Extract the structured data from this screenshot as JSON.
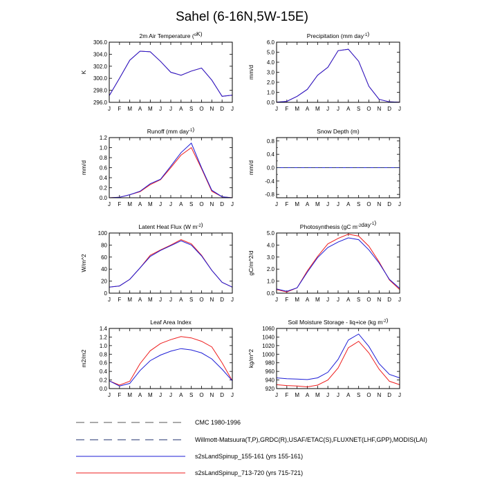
{
  "page_title": "Sahel (6-16N,5W-15E)",
  "months": [
    "J",
    "F",
    "M",
    "A",
    "M",
    "J",
    "J",
    "A",
    "S",
    "O",
    "N",
    "D",
    "J"
  ],
  "colors": {
    "blue": "#1b1bd6",
    "red": "#ee1c1c",
    "grey": "#555555",
    "navy": "#1f2f6e"
  },
  "legend": [
    {
      "label": "CMC 1980-1996",
      "style": "dashed",
      "color": "#555555"
    },
    {
      "label": "Willmott-Matsuura(T,P),GRDC(R),USAF/ETAC(S),FLUXNET(LHF,GPP),MODIS(LAI)",
      "style": "dashed",
      "color": "#1f2f6e"
    },
    {
      "label": "s2sLandSpinup_155-161 (yrs 155-161)",
      "style": "solid",
      "color": "#1b1bd6"
    },
    {
      "label": "s2sLandSpinup_713-720 (yrs 715-721)",
      "style": "solid",
      "color": "#ee1c1c"
    }
  ],
  "chart_data": [
    {
      "type": "line",
      "title_main": "2m Air Temperature (",
      "title_sup": "o",
      "title_end": "K)",
      "ylabel": "K",
      "ylim": [
        296,
        306
      ],
      "yticks": [
        "296.0",
        "298.0",
        "300.0",
        "302.0",
        "304.0",
        "306.0"
      ],
      "series": [
        {
          "values": [
            297.1,
            300.0,
            303.0,
            304.5,
            304.4,
            302.8,
            301.0,
            300.5,
            301.2,
            301.7,
            299.7,
            297.0,
            297.2
          ],
          "color": "#ee1c1c"
        },
        {
          "values": [
            297.1,
            300.0,
            303.0,
            304.5,
            304.4,
            302.8,
            301.0,
            300.5,
            301.2,
            301.7,
            299.7,
            297.0,
            297.2
          ],
          "color": "#1b1bd6"
        }
      ]
    },
    {
      "type": "line",
      "title_main": "Precipitation (mm day",
      "title_sup": "-1",
      "title_end": ")",
      "ylabel": "mm/d",
      "ylim": [
        0,
        6
      ],
      "yticks": [
        "0.0",
        "1.0",
        "2.0",
        "3.0",
        "4.0",
        "5.0",
        "6.0"
      ],
      "series": [
        {
          "values": [
            0.02,
            0.1,
            0.6,
            1.3,
            2.7,
            3.5,
            5.15,
            5.3,
            4.1,
            1.6,
            0.3,
            0.05,
            0.02
          ],
          "color": "#ee1c1c"
        },
        {
          "values": [
            0.02,
            0.1,
            0.6,
            1.3,
            2.7,
            3.5,
            5.15,
            5.3,
            4.1,
            1.6,
            0.3,
            0.05,
            0.02
          ],
          "color": "#1b1bd6"
        }
      ]
    },
    {
      "type": "line",
      "title_main": "Runoff (mm day",
      "title_sup": "-1",
      "title_end": ")",
      "ylabel": "mm/d",
      "ylim": [
        0,
        1.2
      ],
      "yticks": [
        "0.0",
        "0.2",
        "0.4",
        "0.6",
        "0.8",
        "1.0",
        "1.2"
      ],
      "series": [
        {
          "values": [
            0.0,
            0.01,
            0.06,
            0.12,
            0.26,
            0.36,
            0.6,
            0.85,
            1.0,
            0.58,
            0.13,
            0.02,
            0.0
          ],
          "color": "#ee1c1c"
        },
        {
          "values": [
            0.0,
            0.01,
            0.06,
            0.13,
            0.28,
            0.37,
            0.63,
            0.9,
            1.09,
            0.6,
            0.15,
            0.02,
            0.0
          ],
          "color": "#1b1bd6"
        }
      ]
    },
    {
      "type": "line",
      "title_main": "Snow Depth (m)",
      "title_sup": "",
      "title_end": "",
      "ylabel": "mm/d",
      "ylim": [
        -0.9,
        0.9
      ],
      "yticks": [
        "-0.8",
        "-0.4",
        "0.0",
        "0.4",
        "0.8"
      ],
      "ytick_values": [
        -0.8,
        -0.4,
        0,
        0.4,
        0.8
      ],
      "minor_ticks": [
        -0.6,
        -0.2,
        0.2,
        0.6
      ],
      "series": [
        {
          "values": [
            0,
            0,
            0,
            0,
            0,
            0,
            0,
            0,
            0,
            0,
            0,
            0,
            0
          ],
          "color": "#ee1c1c"
        },
        {
          "values": [
            0,
            0,
            0,
            0,
            0,
            0,
            0,
            0,
            0,
            0,
            0,
            0,
            0
          ],
          "color": "#1b1bd6"
        },
        {
          "values": [
            0,
            0,
            0,
            0,
            0,
            0,
            0,
            0,
            0,
            0,
            0,
            0,
            0
          ],
          "color": "#1f2f6e",
          "dashed": true
        }
      ]
    },
    {
      "type": "line",
      "title_main": "Latent Heat Flux (W m",
      "title_sup": "-2",
      "title_end": ")",
      "ylabel": "W/m^2",
      "ylim": [
        0,
        100
      ],
      "yticks": [
        "0",
        "20",
        "40",
        "60",
        "80",
        "100"
      ],
      "series": [
        {
          "values": [
            10,
            12,
            23,
            42,
            63,
            72,
            80,
            89,
            82,
            63,
            38,
            18,
            10
          ],
          "color": "#ee1c1c"
        },
        {
          "values": [
            10,
            12,
            23,
            42,
            61,
            71,
            79,
            87,
            80,
            62,
            38,
            18,
            10
          ],
          "color": "#1b1bd6"
        }
      ]
    },
    {
      "type": "line",
      "title_main": "Photosynthesis (gC m",
      "title_sup": "-2",
      "title_end": "day",
      "title_sup2": "-1",
      "title_end2": ")",
      "ylabel": "gC/m^2/d",
      "ylim": [
        0,
        5
      ],
      "yticks": [
        "0.0",
        "1.0",
        "2.0",
        "3.0",
        "4.0",
        "5.0"
      ],
      "series": [
        {
          "values": [
            0.3,
            0.1,
            0.45,
            1.85,
            3.05,
            4.1,
            4.55,
            4.9,
            4.75,
            3.9,
            2.6,
            1.1,
            0.3
          ],
          "color": "#ee1c1c"
        },
        {
          "values": [
            0.35,
            0.15,
            0.45,
            1.75,
            2.95,
            3.8,
            4.25,
            4.6,
            4.45,
            3.6,
            2.5,
            1.15,
            0.4
          ],
          "color": "#1b1bd6"
        }
      ]
    },
    {
      "type": "line",
      "title_main": "Leaf Area Index",
      "title_sup": "",
      "title_end": "",
      "ylabel": "m2/m2",
      "ylim": [
        0,
        1.4
      ],
      "yticks": [
        "0.0",
        "0.2",
        "0.4",
        "0.6",
        "0.8",
        "1.0",
        "1.2",
        "1.4"
      ],
      "series": [
        {
          "values": [
            0.18,
            0.08,
            0.17,
            0.58,
            0.88,
            1.05,
            1.14,
            1.21,
            1.18,
            1.1,
            0.97,
            0.6,
            0.18
          ],
          "color": "#ee1c1c"
        },
        {
          "values": [
            0.18,
            0.06,
            0.12,
            0.42,
            0.65,
            0.78,
            0.87,
            0.93,
            0.9,
            0.83,
            0.69,
            0.45,
            0.18
          ],
          "color": "#1b1bd6"
        }
      ]
    },
    {
      "type": "line",
      "title_main": "Soil Moisture Storage - liq+ice (kg m",
      "title_sup": "-2",
      "title_end": ")",
      "ylabel": "kg/m^2",
      "ylim": [
        920,
        1060
      ],
      "yticks": [
        "920",
        "940",
        "960",
        "980",
        "1000",
        "1020",
        "1040",
        "1060"
      ],
      "series": [
        {
          "values": [
            929,
            927,
            926,
            924,
            928,
            940,
            968,
            1015,
            1030,
            1003,
            965,
            937,
            929
          ],
          "color": "#ee1c1c"
        },
        {
          "values": [
            945,
            943,
            942,
            941,
            945,
            958,
            988,
            1033,
            1047,
            1018,
            978,
            953,
            945
          ],
          "color": "#1b1bd6"
        }
      ]
    }
  ]
}
